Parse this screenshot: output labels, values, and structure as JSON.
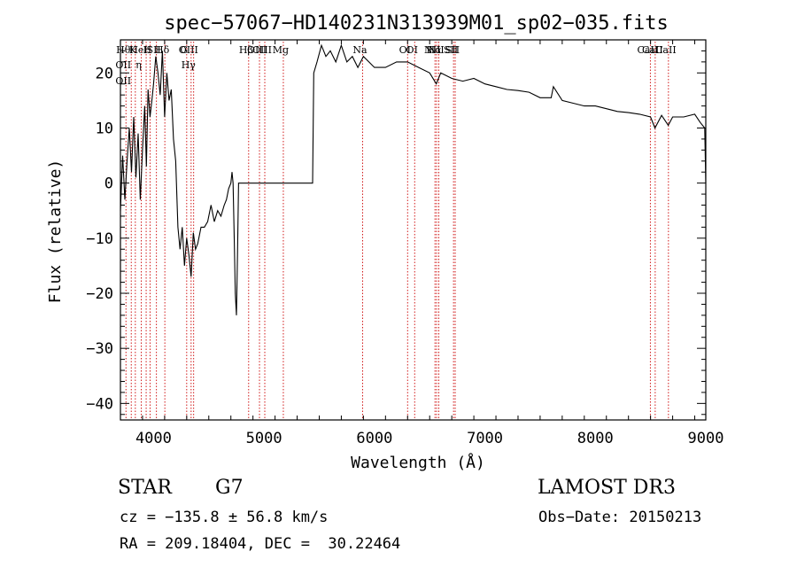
{
  "chart_data": {
    "type": "line",
    "title": "spec−57067−HD140231N313939M01_sp02−035.fits",
    "xlabel": "Wavelength (Å)",
    "ylabel": "Flux (relative)",
    "xlim": [
      3700,
      9000
    ],
    "ylim": [
      -43,
      26
    ],
    "x_ticks": [
      4000,
      5000,
      6000,
      7000,
      8000,
      9000
    ],
    "y_ticks": [
      -40,
      -30,
      -20,
      -10,
      0,
      10,
      20
    ],
    "grid": false,
    "line_color": "#000000",
    "marker_color": "#cc0000",
    "series": [
      {
        "x": [
          3700,
          3720,
          3740,
          3760,
          3780,
          3800,
          3820,
          3840,
          3860,
          3880,
          3900,
          3920,
          3935,
          3950,
          3968,
          3985,
          4000,
          4020,
          4040,
          4060,
          4080,
          4100,
          4120,
          4140,
          4160,
          4180,
          4200,
          4220,
          4240,
          4260,
          4280,
          4300,
          4320,
          4340,
          4360,
          4380,
          4400,
          4430,
          4460,
          4490,
          4520,
          4550,
          4580,
          4610,
          4640,
          4660,
          4680,
          4700,
          4710,
          4720,
          4730,
          4740,
          4750,
          4760,
          4770,
          5440,
          5450,
          5480,
          5520,
          5560,
          5600,
          5650,
          5700,
          5750,
          5800,
          5850,
          5900,
          5950,
          6000,
          6100,
          6200,
          6300,
          6400,
          6500,
          6560,
          6600,
          6700,
          6800,
          6900,
          7000,
          7100,
          7200,
          7300,
          7400,
          7500,
          7600,
          7620,
          7700,
          7800,
          7900,
          8000,
          8100,
          8200,
          8300,
          8400,
          8500,
          8540,
          8600,
          8660,
          8700,
          8800,
          8900,
          8950,
          8990,
          9000
        ],
        "y": [
          -5,
          5,
          -3,
          4,
          10,
          2,
          12,
          1,
          9,
          -3,
          6,
          14,
          3,
          17,
          12,
          15,
          18,
          23,
          20,
          16,
          24,
          12,
          20,
          15,
          17,
          8,
          4,
          -8,
          -12,
          -8,
          -15,
          -10,
          -13,
          -17,
          -9,
          -12,
          -11,
          -8,
          -8,
          -7,
          -4,
          -7,
          -5,
          -6,
          -4,
          -3,
          -1,
          0,
          2,
          0,
          -10,
          -20,
          -24,
          -13,
          0,
          0,
          20,
          22,
          25,
          23,
          24,
          22,
          25,
          22,
          23,
          21,
          23,
          22,
          21,
          21,
          22,
          22,
          21,
          20,
          18,
          20,
          19,
          18.5,
          19,
          18,
          17.5,
          17,
          16.8,
          16.5,
          15.5,
          15.5,
          17.5,
          15,
          14.5,
          14,
          14,
          13.5,
          13,
          12.8,
          12.5,
          12,
          10,
          12.3,
          10.5,
          12,
          12,
          12.5,
          11,
          10,
          0
        ]
      }
    ],
    "line_markers": [
      {
        "w": 3750,
        "labels": [
          "Hθ",
          "OII",
          "OII"
        ]
      },
      {
        "w": 3798,
        "labels": []
      },
      {
        "w": 3835,
        "labels": [
          "K"
        ]
      },
      {
        "w": 3889,
        "labels": [
          "HeI",
          "η"
        ]
      },
      {
        "w": 3933,
        "labels": []
      },
      {
        "w": 3968,
        "labels": [
          "H"
        ]
      },
      {
        "w": 4026,
        "labels": [
          "SII"
        ]
      },
      {
        "w": 4102,
        "labels": [
          "Hδ"
        ]
      },
      {
        "w": 4300,
        "labels": [
          "G"
        ]
      },
      {
        "w": 4340,
        "labels": [
          "OIII",
          "Hγ"
        ]
      },
      {
        "w": 4363,
        "labels": []
      },
      {
        "w": 4861,
        "labels": [
          "Hβ"
        ]
      },
      {
        "w": 4959,
        "labels": [
          "OIII"
        ]
      },
      {
        "w": 5007,
        "labels": [
          "OIII"
        ]
      },
      {
        "w": 5175,
        "labels": [
          "Mg"
        ]
      },
      {
        "w": 5893,
        "labels": [
          "Na"
        ]
      },
      {
        "w": 6300,
        "labels": [
          "OI"
        ]
      },
      {
        "w": 6364,
        "labels": [
          "OI"
        ]
      },
      {
        "w": 6548,
        "labels": [
          "NII"
        ]
      },
      {
        "w": 6563,
        "labels": [
          "Hα"
        ]
      },
      {
        "w": 6583,
        "labels": [
          "NII"
        ]
      },
      {
        "w": 6716,
        "labels": [
          "SII"
        ]
      },
      {
        "w": 6731,
        "labels": [
          "SII"
        ]
      },
      {
        "w": 8498,
        "labels": [
          "CaII"
        ]
      },
      {
        "w": 8542,
        "labels": [
          "CaII"
        ]
      },
      {
        "w": 8662,
        "labels": [
          "CaII"
        ]
      }
    ]
  },
  "info": {
    "object_class": "STAR",
    "subclass": "G7",
    "survey": "LAMOST DR3",
    "velocity": "cz = −135.8 ± 56.8 km/s",
    "obs_date": "Obs−Date: 20150213",
    "coordinates": "RA = 209.18404, DEC =  30.22464"
  }
}
